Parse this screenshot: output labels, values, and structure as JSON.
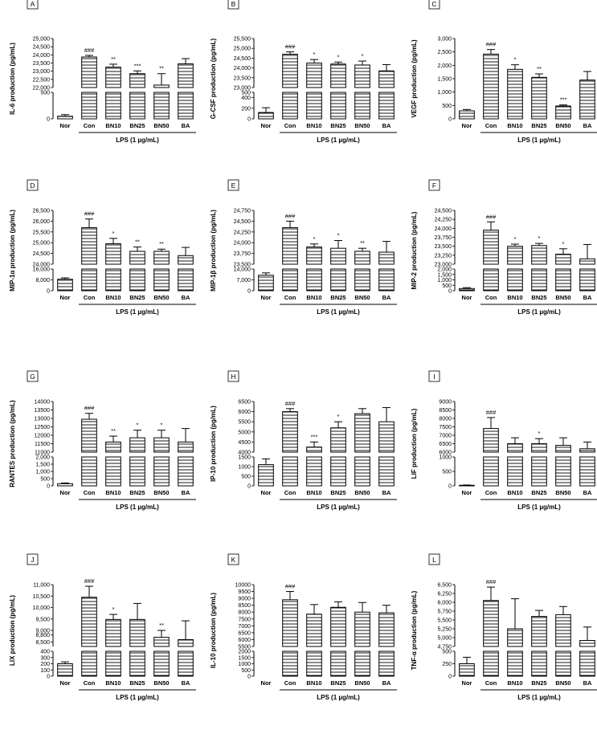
{
  "figure": {
    "xgroup_label": "LPS (1 µg/mL)"
  },
  "chart_data": [
    {
      "panel": "A",
      "type": "bar",
      "ylabel": "IL-6 production (pg/mL)",
      "categories": [
        "Nor",
        "Con",
        "BN10",
        "BN25",
        "BN50",
        "BA"
      ],
      "values": [
        50,
        23870,
        23250,
        22850,
        22150,
        23450
      ],
      "errors": [
        30,
        100,
        180,
        170,
        700,
        320
      ],
      "sig": [
        "",
        "###",
        "**",
        "***",
        "**",
        ""
      ],
      "lower_ticks": [
        "0",
        "500"
      ],
      "upper_ticks": [
        "22,000",
        "22,500",
        "23,000",
        "23,500",
        "24,000",
        "24,500",
        "25,000"
      ],
      "split": {
        "lower_max": 500,
        "upper_min": 22000,
        "upper_max": 25000
      },
      "grouped": [
        "Con",
        "BN10",
        "BN25",
        "BN50",
        "BA"
      ]
    },
    {
      "panel": "B",
      "type": "bar",
      "ylabel": "G-CSF production (pg/mL)",
      "categories": [
        "Nor",
        "Con",
        "BN10",
        "BN25",
        "BN50",
        "BA"
      ],
      "values": [
        120,
        24700,
        24250,
        24200,
        24150,
        23850
      ],
      "errors": [
        90,
        120,
        180,
        100,
        200,
        320
      ],
      "sig": [
        "",
        "###",
        "*",
        "*",
        "*",
        ""
      ],
      "lower_ticks": [
        "0",
        "200",
        "400",
        "500"
      ],
      "upper_ticks": [
        "23,000",
        "23,500",
        "24,000",
        "24,500",
        "25,000",
        "25,500"
      ],
      "split": {
        "lower_max": 500,
        "upper_min": 23000,
        "upper_max": 25500
      },
      "grouped": [
        "Con",
        "BN10",
        "BN25",
        "BN50",
        "BA"
      ]
    },
    {
      "panel": "C",
      "type": "bar",
      "ylabel": "VEGF production (pg/mL)",
      "categories": [
        "Nor",
        "Con",
        "BN10",
        "BN25",
        "BN50",
        "BA"
      ],
      "values": [
        300,
        2420,
        1850,
        1550,
        480,
        1450
      ],
      "errors": [
        50,
        170,
        170,
        130,
        40,
        320
      ],
      "sig": [
        "",
        "###",
        "*",
        "**",
        "***",
        ""
      ],
      "ticks": [
        "0",
        "500",
        "1,000",
        "1,500",
        "2,000",
        "2,500",
        "3,000"
      ],
      "ylim": [
        0,
        3000
      ],
      "grouped": [
        "Con",
        "BN10",
        "BN25",
        "BN50",
        "BA"
      ]
    },
    {
      "panel": "D",
      "type": "bar",
      "ylabel": "MIP-1α production (pg/mL)",
      "categories": [
        "Nor",
        "Con",
        "BN10",
        "BN25",
        "BN50",
        "BA"
      ],
      "values": [
        8500,
        25700,
        24950,
        24600,
        24600,
        24400
      ],
      "errors": [
        1000,
        400,
        250,
        200,
        100,
        380
      ],
      "sig": [
        "",
        "###",
        "*",
        "**",
        "**",
        ""
      ],
      "lower_ticks": [
        "0",
        "8,000",
        "16,000"
      ],
      "upper_ticks": [
        "24,000",
        "24,500",
        "25,000",
        "25,500",
        "26,000",
        "26,500"
      ],
      "split": {
        "lower_max": 16000,
        "upper_min": 24000,
        "upper_max": 26500
      },
      "grouped": [
        "Con",
        "BN10",
        "BN25",
        "BN50",
        "BA"
      ]
    },
    {
      "panel": "E",
      "type": "bar",
      "ylabel": "MIP-1β production (pg/mL)",
      "categories": [
        "Nor",
        "Con",
        "BN10",
        "BN25",
        "BN50",
        "BA"
      ],
      "values": [
        10000,
        24350,
        23900,
        23870,
        23800,
        23780
      ],
      "errors": [
        1500,
        150,
        70,
        180,
        70,
        250
      ],
      "sig": [
        "",
        "###",
        "*",
        "*",
        "**",
        ""
      ],
      "lower_ticks": [
        "0",
        "7,000",
        "14,000"
      ],
      "upper_ticks": [
        "23,500",
        "23,750",
        "24,000",
        "24,250",
        "24,500",
        "24,750"
      ],
      "split": {
        "lower_max": 14000,
        "upper_min": 23500,
        "upper_max": 24750
      },
      "grouped": [
        "Con",
        "BN10",
        "BN25",
        "BN50",
        "BA"
      ]
    },
    {
      "panel": "F",
      "type": "bar",
      "ylabel": "MIP-2 production (pg/mL)",
      "categories": [
        "Nor",
        "Con",
        "BN10",
        "BN25",
        "BN50",
        "BA"
      ],
      "values": [
        200,
        23950,
        23500,
        23520,
        23280,
        23150
      ],
      "errors": [
        80,
        230,
        60,
        60,
        150,
        400
      ],
      "sig": [
        "",
        "###",
        "*",
        "*",
        "*",
        ""
      ],
      "lower_ticks": [
        "0",
        "500",
        "1,000",
        "1,500",
        "2,000"
      ],
      "upper_ticks": [
        "23,000",
        "23,250",
        "23,500",
        "23,750",
        "24,000",
        "24,250",
        "24,500"
      ],
      "split": {
        "lower_max": 2000,
        "upper_min": 23000,
        "upper_max": 24500
      },
      "grouped": [
        "Con",
        "BN10",
        "BN25",
        "BN50",
        "BA"
      ]
    },
    {
      "panel": "G",
      "type": "bar",
      "ylabel": "RANTES production (pg/mL)",
      "categories": [
        "Nor",
        "Con",
        "BN10",
        "BN25",
        "BN50",
        "BA"
      ],
      "values": [
        150,
        12950,
        11600,
        11850,
        11850,
        11600
      ],
      "errors": [
        50,
        350,
        350,
        450,
        450,
        800
      ],
      "sig": [
        "",
        "###",
        "**",
        "*",
        "*",
        ""
      ],
      "lower_ticks": [
        "0",
        "500",
        "1,000",
        "1,500",
        "2,000"
      ],
      "upper_ticks": [
        "11000",
        "11500",
        "12000",
        "12500",
        "13000",
        "13500",
        "14000"
      ],
      "split": {
        "lower_max": 2000,
        "upper_min": 11000,
        "upper_max": 14000
      },
      "grouped": [
        "Con",
        "BN10",
        "BN25",
        "BN50",
        "BA"
      ]
    },
    {
      "panel": "H",
      "type": "bar",
      "ylabel": "IP-10 production (pg/mL)",
      "categories": [
        "Nor",
        "Con",
        "BN10",
        "BN25",
        "BN50",
        "BA"
      ],
      "values": [
        1100,
        6000,
        4250,
        5200,
        5900,
        5500
      ],
      "errors": [
        300,
        150,
        250,
        300,
        250,
        700
      ],
      "sig": [
        "",
        "###",
        "***",
        "*",
        "",
        ""
      ],
      "lower_ticks": [
        "0",
        "500",
        "1000",
        "1500"
      ],
      "upper_ticks": [
        "4000",
        "4500",
        "5000",
        "5500",
        "6000",
        "6500"
      ],
      "split": {
        "lower_max": 1500,
        "upper_min": 4000,
        "upper_max": 6500
      },
      "grouped": [
        "Con",
        "BN10",
        "BN25",
        "BN50",
        "BA"
      ]
    },
    {
      "panel": "I",
      "type": "bar",
      "ylabel": "LIF production (pg/mL)",
      "categories": [
        "Nor",
        "Con",
        "BN10",
        "BN25",
        "BN50",
        "BA"
      ],
      "values": [
        20,
        7400,
        6500,
        6500,
        6400,
        6200
      ],
      "errors": [
        10,
        650,
        350,
        300,
        450,
        400
      ],
      "sig": [
        "",
        "###",
        "",
        "*",
        "",
        ""
      ],
      "lower_ticks": [
        "0",
        "500",
        "1000"
      ],
      "upper_ticks": [
        "6000",
        "6500",
        "7000",
        "7500",
        "8000",
        "8500",
        "9000"
      ],
      "split": {
        "lower_max": 1000,
        "upper_min": 6000,
        "upper_max": 9000
      },
      "grouped": [
        "Con",
        "BN10",
        "BN25",
        "BN50",
        "BA"
      ]
    },
    {
      "panel": "J",
      "type": "bar",
      "ylabel": "LIX production (pg/mL)",
      "categories": [
        "Nor",
        "Con",
        "BN10",
        "BN25",
        "BN50",
        "BA"
      ],
      "values": [
        200,
        10450,
        9480,
        9480,
        8700,
        8600
      ],
      "errors": [
        30,
        480,
        220,
        700,
        300,
        820
      ],
      "sig": [
        "",
        "###",
        "*",
        "",
        "**",
        ""
      ],
      "lower_ticks": [
        "0",
        "100",
        "200",
        "300",
        "400"
      ],
      "upper_ticks": [
        "8,500",
        "8,800",
        "9,000",
        "9,500",
        "10,000",
        "10,500",
        "11,000"
      ],
      "split": {
        "lower_max": 400,
        "upper_min": 8300,
        "upper_max": 11000
      },
      "grouped": [
        "Con",
        "BN10",
        "BN25",
        "BN50",
        "BA"
      ]
    },
    {
      "panel": "K",
      "type": "bar",
      "ylabel": "IL-10 production (pg/mL)",
      "categories": [
        "Nor",
        "Con",
        "BN10",
        "BN25",
        "BN50",
        "BA"
      ],
      "values": [
        0,
        8900,
        7850,
        8350,
        8000,
        7950
      ],
      "errors": [
        0,
        600,
        700,
        400,
        700,
        550
      ],
      "sig": [
        "",
        "###",
        "",
        "",
        "",
        ""
      ],
      "lower_ticks": [
        "0",
        "500",
        "1000",
        "1500",
        "2000"
      ],
      "upper_ticks": [
        "5500",
        "6000",
        "6500",
        "7000",
        "7500",
        "8000",
        "8500",
        "9000",
        "9500",
        "10000"
      ],
      "split": {
        "lower_max": 2000,
        "upper_min": 5500,
        "upper_max": 10000
      },
      "grouped": [
        "Con",
        "BN10",
        "BN25",
        "BN50",
        "BA"
      ]
    },
    {
      "panel": "L",
      "type": "bar",
      "ylabel": "TNF-α production (pg/mL)",
      "categories": [
        "Nor",
        "Con",
        "BN10",
        "BN25",
        "BN50",
        "BA"
      ],
      "values": [
        250,
        6050,
        5250,
        5600,
        5650,
        4920
      ],
      "errors": [
        130,
        380,
        850,
        170,
        230,
        380
      ],
      "sig": [
        "",
        "###",
        "",
        "",
        "",
        ""
      ],
      "lower_ticks": [
        "0",
        "250",
        "500"
      ],
      "upper_ticks": [
        "4,750",
        "5,000",
        "5,250",
        "5,500",
        "5,750",
        "6,000",
        "6,250",
        "6,500"
      ],
      "split": {
        "lower_max": 500,
        "upper_min": 4750,
        "upper_max": 6500
      },
      "grouped": [
        "Con",
        "BN10",
        "BN25",
        "BN50",
        "BA"
      ]
    }
  ]
}
